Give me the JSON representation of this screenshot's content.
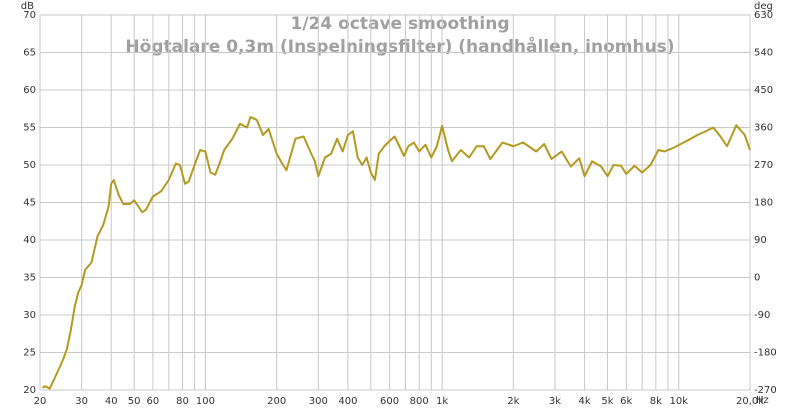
{
  "chart_data": {
    "type": "line",
    "title": "1/24 octave smoothing",
    "subtitle": "Högtalare 0,3m (Inspelningsfilter) (handhållen, inomhus)",
    "y_unit": "dB",
    "y2_unit": "deg",
    "x_unit": "Hz",
    "log_x": true,
    "grid": true,
    "xlim": [
      20,
      20000
    ],
    "ylim": [
      20,
      70
    ],
    "y2lim": [
      -270,
      630
    ],
    "xticks": [
      20,
      30,
      40,
      50,
      60,
      80,
      100,
      200,
      300,
      400,
      600,
      800,
      {
        "value": 1000,
        "label": "1k"
      },
      {
        "value": 2000,
        "label": "2k"
      },
      {
        "value": 3000,
        "label": "3k"
      },
      {
        "value": 4000,
        "label": "4k"
      },
      {
        "value": 5000,
        "label": "5k"
      },
      {
        "value": 6000,
        "label": "6k"
      },
      {
        "value": 8000,
        "label": "8k"
      },
      {
        "value": 10000,
        "label": "10k"
      },
      {
        "value": 20000,
        "label": "20,0k"
      }
    ],
    "xgrid_minor": [
      70,
      90,
      500,
      700,
      900,
      7000,
      9000
    ],
    "yticks": [
      20,
      25,
      30,
      35,
      40,
      45,
      50,
      55,
      60,
      65,
      70
    ],
    "y2ticks": [
      -270,
      -180,
      -90,
      0,
      90,
      180,
      270,
      360,
      450,
      540,
      630
    ],
    "x": [
      20.5,
      21,
      22,
      23,
      25,
      26,
      27,
      28,
      29,
      30,
      31,
      33,
      35,
      37,
      39,
      40,
      41,
      43,
      45,
      48,
      50,
      52,
      54,
      56,
      60,
      65,
      70,
      75,
      78,
      82,
      85,
      90,
      95,
      100,
      105,
      110,
      115,
      120,
      130,
      140,
      150,
      155,
      165,
      175,
      185,
      200,
      210,
      220,
      240,
      260,
      280,
      290,
      300,
      320,
      340,
      360,
      380,
      400,
      420,
      440,
      460,
      480,
      500,
      520,
      540,
      570,
      600,
      630,
      660,
      690,
      720,
      760,
      800,
      850,
      900,
      950,
      1000,
      1060,
      1100,
      1200,
      1300,
      1400,
      1500,
      1600,
      1800,
      2000,
      2200,
      2500,
      2700,
      2900,
      3200,
      3500,
      3800,
      4000,
      4300,
      4700,
      5000,
      5300,
      5700,
      6000,
      6500,
      7000,
      7600,
      8200,
      8700,
      9500,
      10500,
      12000,
      13000,
      14000,
      15000,
      16000,
      17500,
      19000,
      20000
    ],
    "series": [
      {
        "name": "Högtalare 0,3m",
        "color": "#b39a1f",
        "values": [
          20.3,
          20.5,
          20.2,
          21.5,
          24,
          25.5,
          28,
          31,
          33,
          34,
          36,
          37,
          40.5,
          42,
          44.5,
          47.5,
          48,
          46,
          44.8,
          44.8,
          45.3,
          44.5,
          43.7,
          44,
          45.8,
          46.5,
          48,
          50.2,
          50,
          47.5,
          47.8,
          50,
          52,
          51.8,
          49,
          48.7,
          50.3,
          52,
          53.5,
          55.5,
          55,
          56.4,
          56,
          54,
          54.8,
          51.5,
          50.3,
          49.3,
          53.5,
          53.8,
          51.5,
          50.5,
          48.5,
          51,
          51.5,
          53.5,
          51.8,
          54,
          54.5,
          51,
          50,
          51,
          49,
          48,
          51.5,
          52.5,
          53.2,
          53.8,
          52.5,
          51.2,
          52.5,
          53,
          51.8,
          52.7,
          51,
          52.5,
          55.2,
          52,
          50.5,
          52,
          51,
          52.5,
          52.5,
          50.8,
          53,
          52.5,
          53,
          51.8,
          52.8,
          50.8,
          51.8,
          49.8,
          50.9,
          48.5,
          50.5,
          49.8,
          48.5,
          50,
          49.9,
          48.8,
          49.9,
          49,
          50,
          52,
          51.8,
          52.3,
          53,
          54,
          54.5,
          55,
          53.8,
          52.5,
          55.3,
          54,
          52
        ]
      }
    ]
  }
}
